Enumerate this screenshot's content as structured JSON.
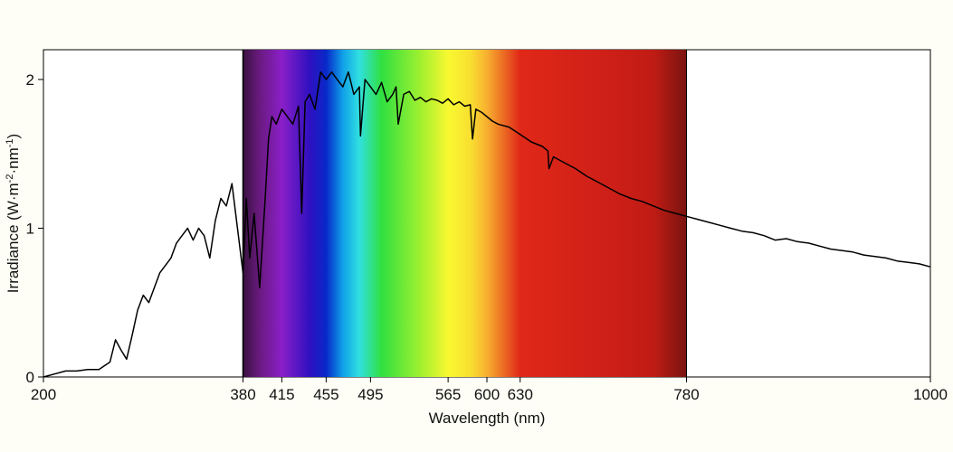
{
  "chart_data": {
    "type": "line",
    "title": "",
    "xlabel": "Wavelength (nm)",
    "ylabel": {
      "main": "Irradiance (W·m",
      "sup1": "-2",
      "mid": "·nm",
      "sup2": "-1",
      "end": ")"
    },
    "xlim": [
      200,
      1000
    ],
    "ylim": [
      0,
      2.2
    ],
    "x_ticks": [
      200,
      380,
      415,
      455,
      495,
      565,
      600,
      630,
      780,
      1000
    ],
    "y_ticks": [
      0,
      1,
      2
    ],
    "visible_band": [
      380,
      780
    ],
    "spectrum_stops": [
      {
        "wl": 380,
        "color": "#3a1240"
      },
      {
        "wl": 395,
        "color": "#6a1a80"
      },
      {
        "wl": 415,
        "color": "#8a1fc8"
      },
      {
        "wl": 440,
        "color": "#3010c0"
      },
      {
        "wl": 455,
        "color": "#0828c8"
      },
      {
        "wl": 470,
        "color": "#10a0e8"
      },
      {
        "wl": 485,
        "color": "#30e0e0"
      },
      {
        "wl": 505,
        "color": "#30e040"
      },
      {
        "wl": 540,
        "color": "#a0f030"
      },
      {
        "wl": 565,
        "color": "#f8f830"
      },
      {
        "wl": 585,
        "color": "#f8e030"
      },
      {
        "wl": 600,
        "color": "#f8b030"
      },
      {
        "wl": 630,
        "color": "#e02818"
      },
      {
        "wl": 700,
        "color": "#d02018"
      },
      {
        "wl": 750,
        "color": "#c01c14"
      },
      {
        "wl": 780,
        "color": "#7a1410"
      }
    ],
    "series": [
      {
        "color": "#000000",
        "x": [
          200,
          210,
          220,
          230,
          240,
          250,
          260,
          265,
          270,
          275,
          280,
          285,
          290,
          295,
          300,
          305,
          310,
          315,
          320,
          325,
          330,
          335,
          340,
          345,
          350,
          355,
          360,
          365,
          370,
          375,
          380,
          383,
          386,
          390,
          395,
          400,
          403,
          406,
          410,
          415,
          420,
          425,
          430,
          433,
          436,
          440,
          445,
          450,
          455,
          460,
          465,
          470,
          475,
          480,
          485,
          486,
          490,
          495,
          500,
          505,
          510,
          515,
          518,
          520,
          525,
          530,
          535,
          540,
          545,
          550,
          555,
          560,
          565,
          570,
          575,
          580,
          585,
          587,
          590,
          595,
          600,
          605,
          610,
          620,
          630,
          640,
          650,
          655,
          656,
          660,
          670,
          680,
          690,
          700,
          710,
          720,
          730,
          740,
          750,
          760,
          770,
          780,
          790,
          800,
          810,
          820,
          830,
          840,
          850,
          860,
          870,
          880,
          890,
          900,
          910,
          920,
          930,
          940,
          950,
          960,
          970,
          980,
          990,
          1000
        ],
        "y": [
          0.0,
          0.02,
          0.04,
          0.04,
          0.05,
          0.05,
          0.1,
          0.25,
          0.18,
          0.12,
          0.28,
          0.45,
          0.55,
          0.5,
          0.6,
          0.7,
          0.75,
          0.8,
          0.9,
          0.95,
          1.0,
          0.92,
          1.0,
          0.95,
          0.8,
          1.05,
          1.2,
          1.15,
          1.3,
          1.0,
          0.7,
          1.2,
          0.8,
          1.1,
          0.6,
          1.2,
          1.6,
          1.75,
          1.7,
          1.8,
          1.75,
          1.7,
          1.82,
          1.1,
          1.85,
          1.9,
          1.8,
          2.05,
          2.0,
          2.05,
          2.0,
          1.95,
          2.05,
          1.9,
          1.95,
          1.62,
          2.0,
          1.95,
          1.9,
          1.98,
          1.85,
          1.9,
          1.95,
          1.7,
          1.9,
          1.92,
          1.86,
          1.88,
          1.85,
          1.87,
          1.86,
          1.84,
          1.87,
          1.83,
          1.85,
          1.82,
          1.83,
          1.6,
          1.8,
          1.78,
          1.75,
          1.72,
          1.7,
          1.68,
          1.63,
          1.58,
          1.55,
          1.52,
          1.4,
          1.48,
          1.44,
          1.4,
          1.35,
          1.31,
          1.27,
          1.23,
          1.2,
          1.18,
          1.15,
          1.12,
          1.1,
          1.08,
          1.06,
          1.04,
          1.02,
          1.0,
          0.98,
          0.97,
          0.95,
          0.92,
          0.93,
          0.91,
          0.9,
          0.88,
          0.86,
          0.85,
          0.84,
          0.82,
          0.81,
          0.8,
          0.78,
          0.77,
          0.76,
          0.74
        ]
      }
    ]
  }
}
